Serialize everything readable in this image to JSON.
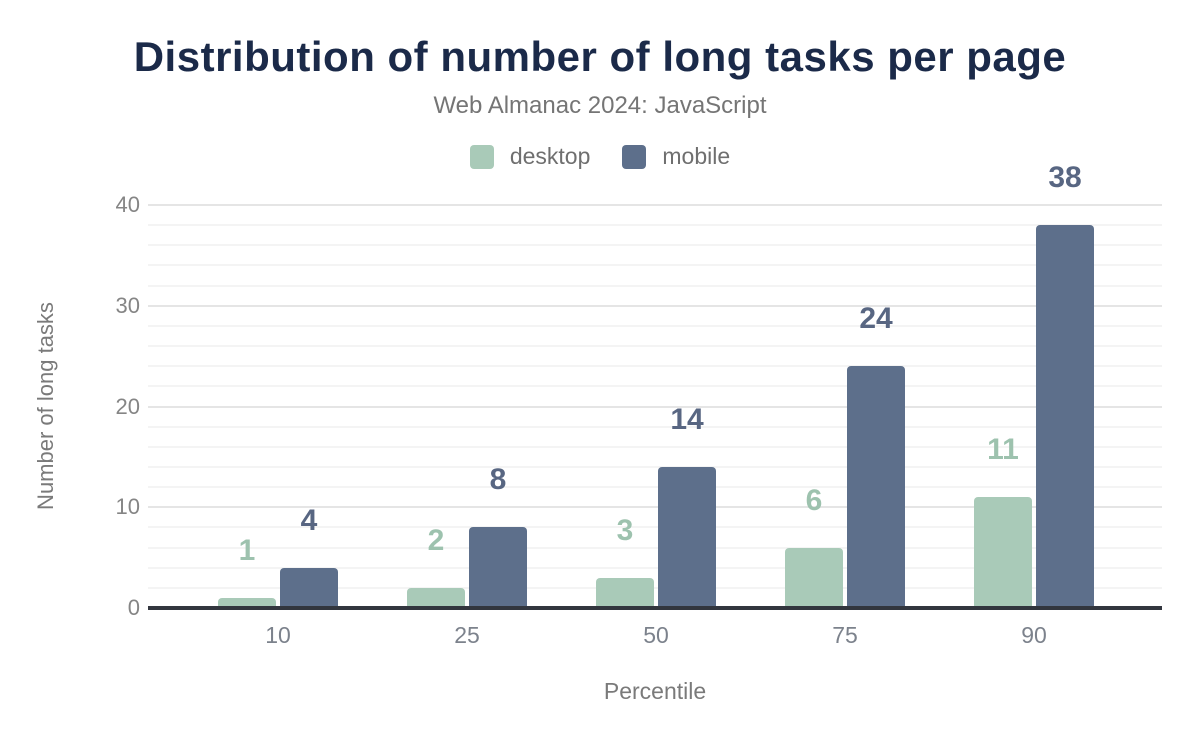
{
  "chart_data": {
    "type": "bar",
    "title": "Distribution of number of long tasks per page",
    "subtitle": "Web Almanac 2024: JavaScript",
    "title_color": "#1b2a49",
    "categories": [
      "10",
      "25",
      "50",
      "75",
      "90"
    ],
    "series": [
      {
        "name": "desktop",
        "color": "#a9cab8",
        "label_color": "#9dc2ae",
        "values": [
          1,
          2,
          3,
          6,
          11
        ]
      },
      {
        "name": "mobile",
        "color": "#5d6f8b",
        "label_color": "#586682",
        "values": [
          4,
          8,
          14,
          24,
          38
        ]
      }
    ],
    "xlabel": "Percentile",
    "ylabel": "Number of long tasks",
    "ylim": [
      0,
      40
    ],
    "yticks": [
      0,
      10,
      20,
      30,
      40
    ],
    "minor_grid_step": 2,
    "grid": "on",
    "legend_position": "top",
    "data_labels": "above bars"
  }
}
